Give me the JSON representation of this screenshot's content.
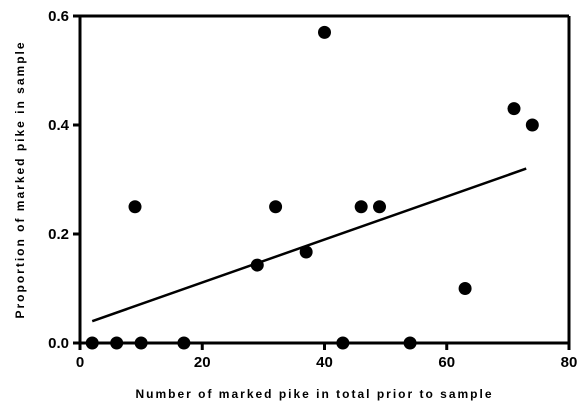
{
  "chart_data": {
    "type": "scatter",
    "title": "",
    "xlabel": "Number of marked pike in total prior to sample",
    "ylabel": "Proportion of marked pike in sample",
    "xlim": [
      0,
      80
    ],
    "ylim": [
      0,
      0.6
    ],
    "xticks": [
      "0",
      "20",
      "40",
      "60",
      "80"
    ],
    "yticks": [
      "0.0",
      "0.2",
      "0.4",
      "0.6"
    ],
    "grid": false,
    "series": [
      {
        "x": [
          2,
          6,
          9,
          10,
          17,
          29,
          32,
          37,
          40,
          43,
          46,
          49,
          54,
          63,
          71,
          74
        ],
        "y": [
          0,
          0,
          0.25,
          0,
          0,
          0.143,
          0.25,
          0.167,
          0.57,
          0,
          0.25,
          0.25,
          0,
          0.1,
          0.43,
          0.4
        ],
        "color": "#000000"
      }
    ],
    "trendline": {
      "x": [
        2,
        73
      ],
      "y": [
        0.04,
        0.32
      ]
    }
  }
}
